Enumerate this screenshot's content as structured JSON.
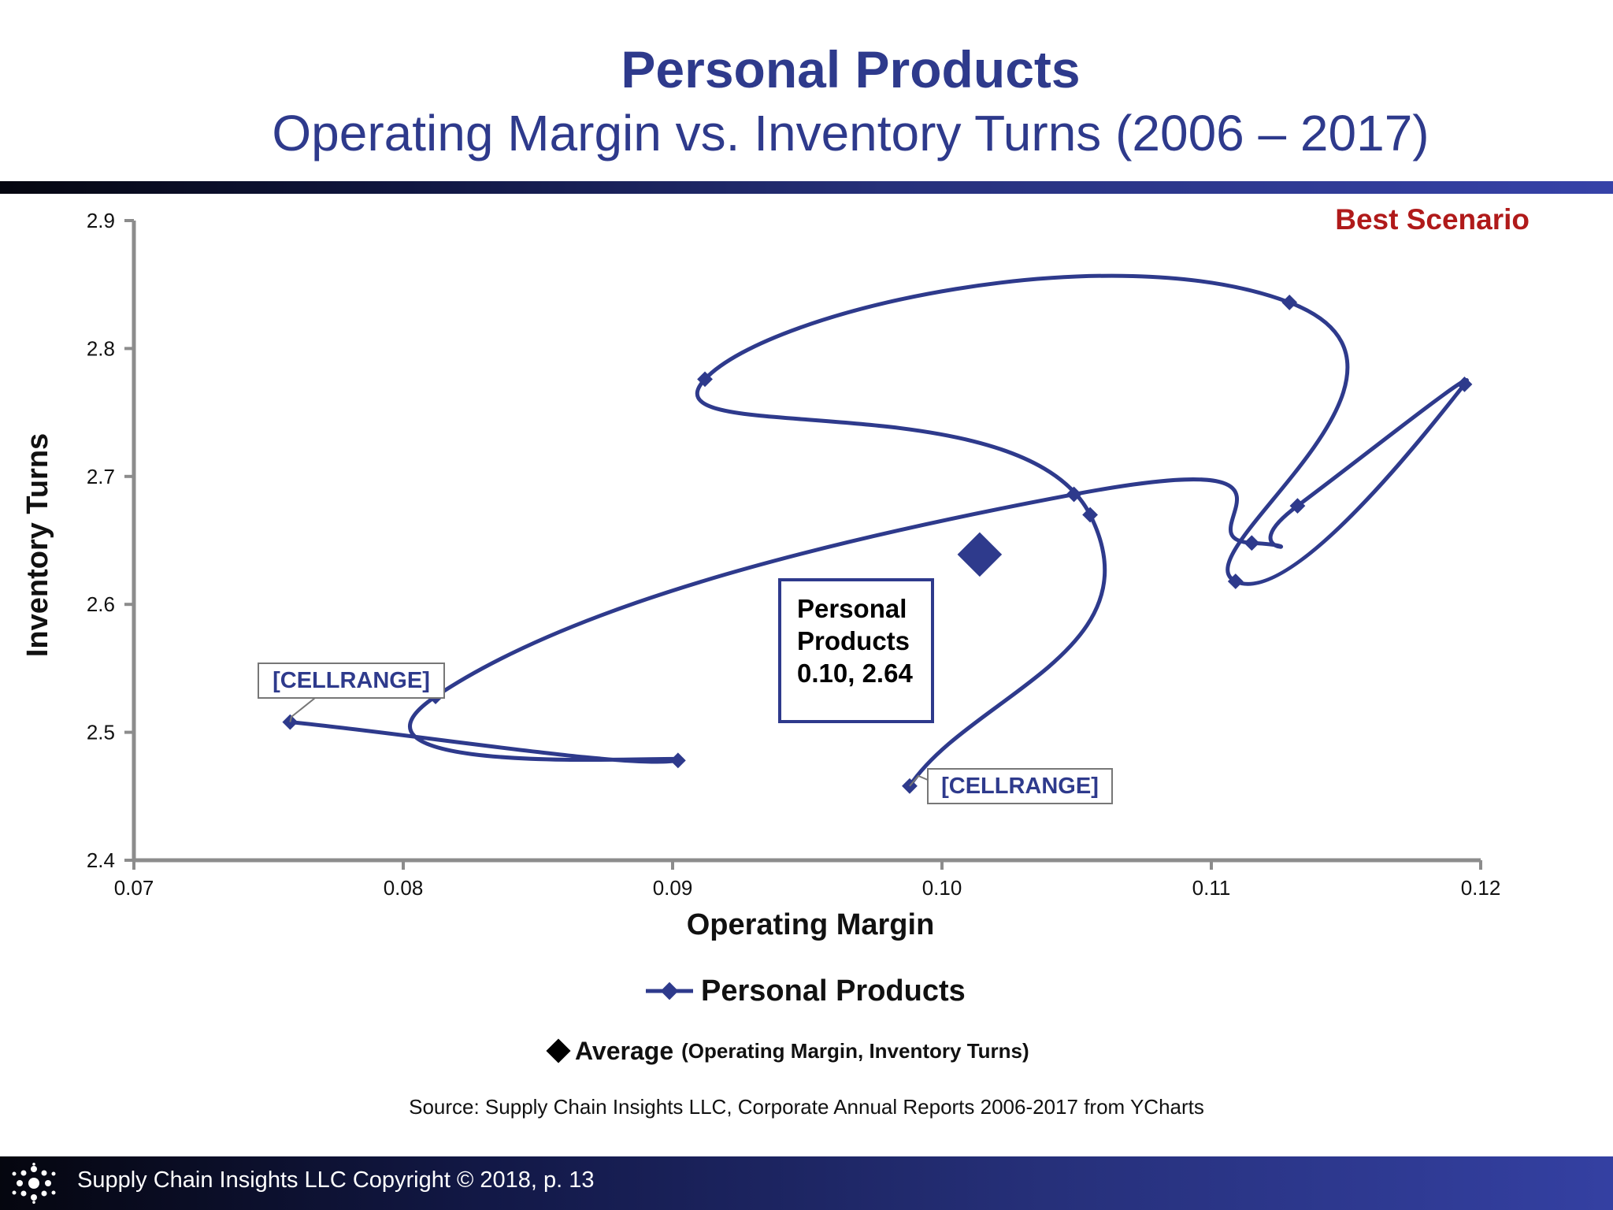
{
  "header": {
    "title": "Personal Products",
    "subtitle": "Operating Margin vs. Inventory Turns (2006 – 2017)"
  },
  "annotation": {
    "best_scenario": "Best Scenario"
  },
  "callout": {
    "line1": "Personal",
    "line2": "Products",
    "line3": "0.10, 2.64"
  },
  "legend": {
    "series_label": "Personal Products",
    "average_label": "Average",
    "average_sub": "(Operating Margin, Inventory Turns)"
  },
  "source": "Source:  Supply Chain Insights LLC, Corporate Annual Reports 2006-2017 from YCharts",
  "footer": {
    "text": "Supply Chain Insights LLC Copyright © 2018, p. 13"
  },
  "colors": {
    "series": "#2e3a8c",
    "axis": "#8c8c8c",
    "best_scenario": "#b01a1a",
    "average_marker": "#2e3a8c"
  },
  "chart_data": {
    "type": "scatter",
    "title": "Personal Products",
    "subtitle": "Operating Margin vs. Inventory Turns (2006 – 2017)",
    "xlabel": "Operating Margin",
    "ylabel": "Inventory Turns",
    "xlim": [
      0.07,
      0.12
    ],
    "ylim": [
      2.4,
      2.9
    ],
    "x_ticks": [
      "0.07",
      "0.08",
      "0.09",
      "0.10",
      "0.11",
      "0.12"
    ],
    "y_ticks": [
      "2.4",
      "2.5",
      "2.6",
      "2.7",
      "2.8",
      "2.9"
    ],
    "grid": false,
    "connected": true,
    "smooth": true,
    "series": [
      {
        "name": "Personal Products",
        "points": [
          {
            "x": 0.0988,
            "y": 2.458
          },
          {
            "x": 0.1055,
            "y": 2.67
          },
          {
            "x": 0.0912,
            "y": 2.776
          },
          {
            "x": 0.1129,
            "y": 2.836
          },
          {
            "x": 0.1109,
            "y": 2.618
          },
          {
            "x": 0.1194,
            "y": 2.772
          },
          {
            "x": 0.1132,
            "y": 2.677
          },
          {
            "x": 0.1115,
            "y": 2.648
          },
          {
            "x": 0.1049,
            "y": 2.686
          },
          {
            "x": 0.0812,
            "y": 2.528
          },
          {
            "x": 0.0902,
            "y": 2.478
          },
          {
            "x": 0.0758,
            "y": 2.508
          }
        ]
      }
    ],
    "average": {
      "label": "Average",
      "x": 0.1014,
      "y": 2.639
    },
    "data_labels": [
      {
        "text": "[CELLRANGE]",
        "x": 0.0758,
        "y": 2.508
      },
      {
        "text": "[CELLRANGE]",
        "x": 0.0988,
        "y": 2.458
      }
    ]
  }
}
